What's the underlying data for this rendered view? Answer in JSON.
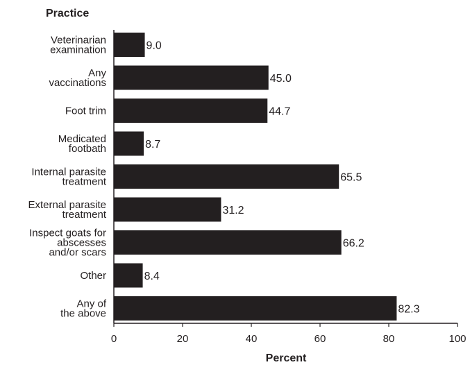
{
  "chart_data": {
    "type": "bar",
    "orientation": "horizontal",
    "ylabel": "Practice",
    "xlabel": "Percent",
    "xlim": [
      0,
      100
    ],
    "xticks": [
      0,
      20,
      40,
      60,
      80,
      100
    ],
    "grid": false,
    "bar_color": "#231f20",
    "categories": [
      [
        "Veterinarian",
        "examination"
      ],
      [
        "Any",
        "vaccinations"
      ],
      [
        "Foot trim"
      ],
      [
        "Medicated",
        "footbath"
      ],
      [
        "Internal parasite",
        "treatment"
      ],
      [
        "External parasite",
        "treatment"
      ],
      [
        "Inspect goats for",
        "abscesses",
        "and/or scars"
      ],
      [
        "Other"
      ],
      [
        "Any of",
        "the above"
      ]
    ],
    "values": [
      9.0,
      45.0,
      44.7,
      8.7,
      65.5,
      31.2,
      66.2,
      8.4,
      82.3
    ],
    "value_labels": [
      "9.0",
      "45.0",
      "44.7",
      "8.7",
      "65.5",
      "31.2",
      "66.2",
      "8.4",
      "82.3"
    ]
  }
}
